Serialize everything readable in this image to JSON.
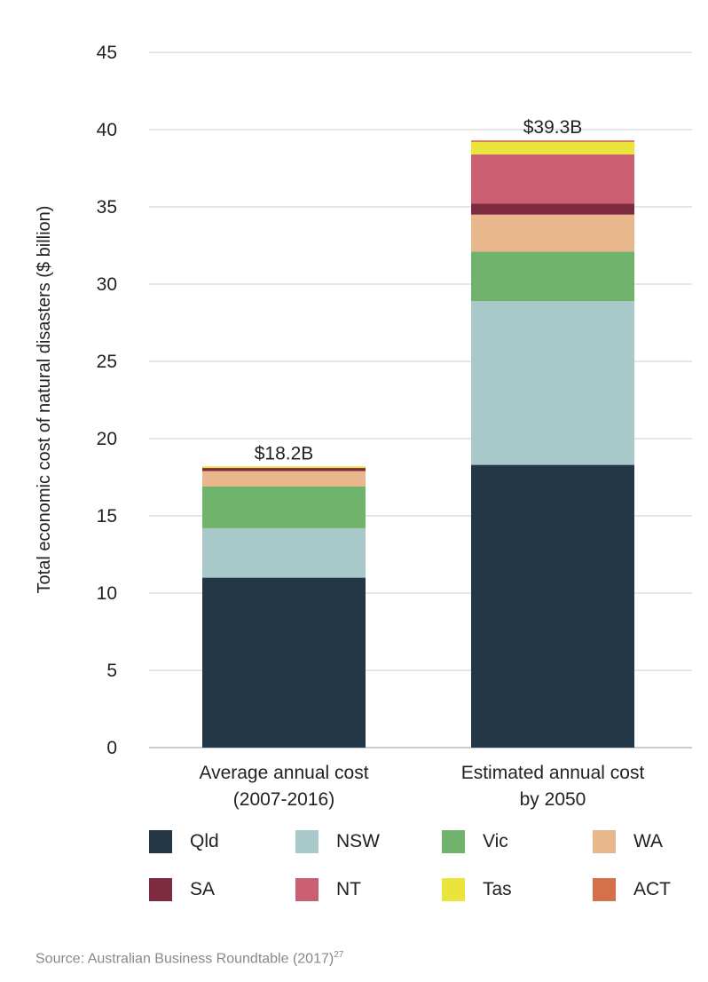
{
  "chart_data": {
    "type": "bar",
    "stacked": true,
    "title": "",
    "ylabel": "Total economic cost of natural disasters ($ billion)",
    "xlabel": "",
    "ylim": [
      0,
      45
    ],
    "yticks": [
      0,
      5,
      10,
      15,
      20,
      25,
      30,
      35,
      40,
      45
    ],
    "grid": true,
    "categories": [
      [
        "Average annual cost",
        "(2007-2016)"
      ],
      [
        "Estimated annual cost",
        "by 2050"
      ]
    ],
    "totals_labels": [
      "$18.2B",
      "$39.3B"
    ],
    "totals": [
      18.2,
      39.3
    ],
    "series": [
      {
        "name": "Qld",
        "color": "#243746",
        "values": [
          11.0,
          18.3
        ]
      },
      {
        "name": "NSW",
        "color": "#a9c8ca",
        "values": [
          3.2,
          10.6
        ]
      },
      {
        "name": "Vic",
        "color": "#6fb36c",
        "values": [
          2.7,
          3.2
        ]
      },
      {
        "name": "WA",
        "color": "#e8b78c",
        "values": [
          1.0,
          2.4
        ]
      },
      {
        "name": "SA",
        "color": "#7e2a40",
        "values": [
          0.2,
          0.7
        ]
      },
      {
        "name": "NT",
        "color": "#c95f70",
        "values": [
          0.0,
          3.2
        ]
      },
      {
        "name": "Tas",
        "color": "#ebe43a",
        "values": [
          0.1,
          0.8
        ]
      },
      {
        "name": "ACT",
        "color": "#d4714a",
        "values": [
          0.0,
          0.1
        ]
      }
    ],
    "legend_position": "bottom"
  },
  "source": {
    "text": "Source: Australian Business Roundtable (2017)",
    "footnote": "27"
  }
}
